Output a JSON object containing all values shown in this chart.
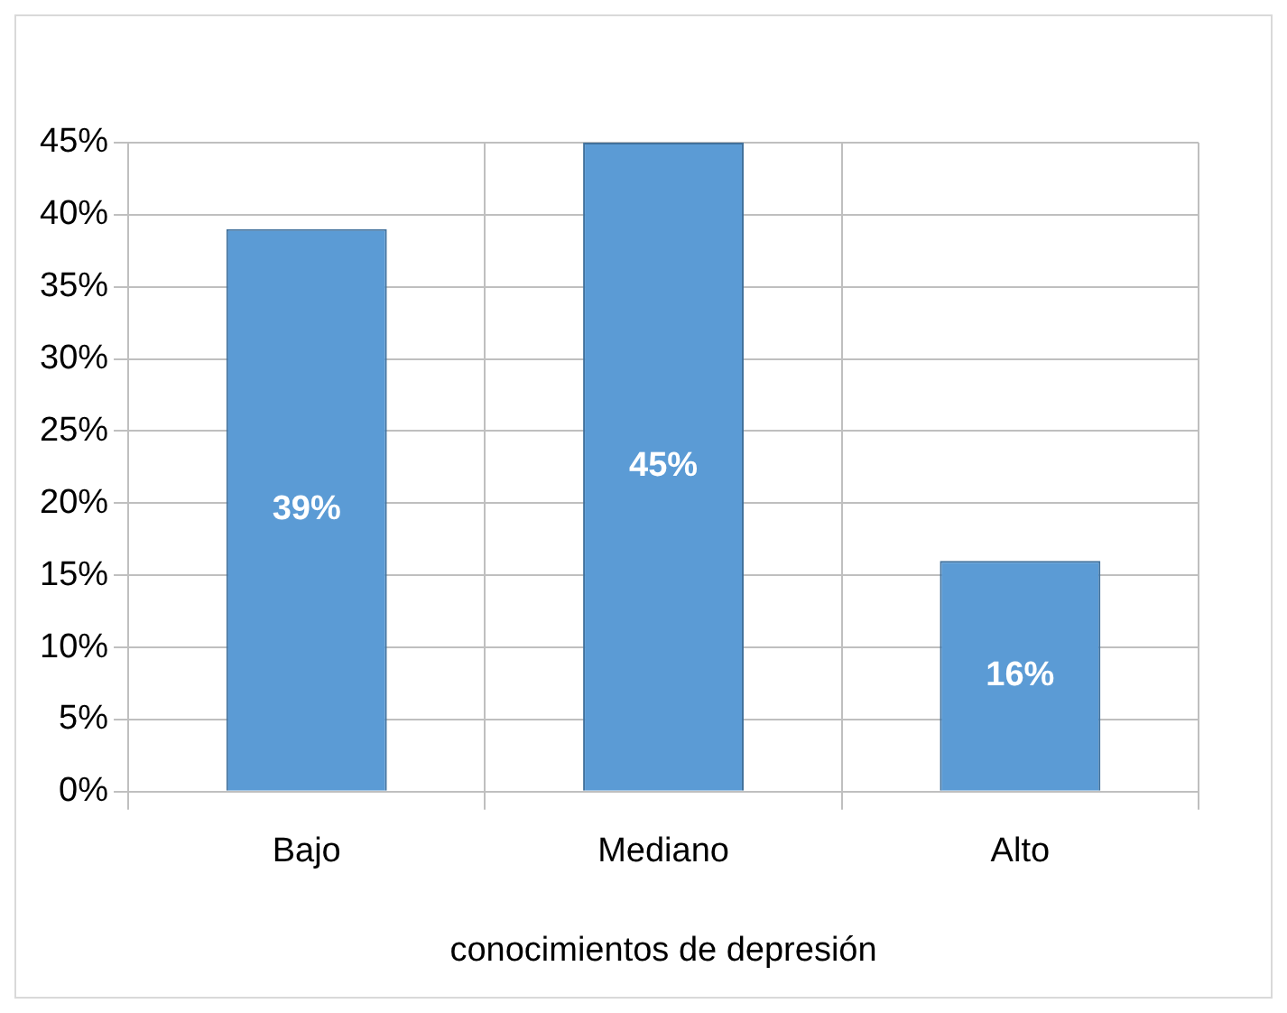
{
  "chart_data": {
    "type": "bar",
    "xlabel": "conocimientos de depresión",
    "categories": [
      "Bajo",
      "Mediano",
      "Alto"
    ],
    "values": [
      39,
      45,
      16
    ],
    "value_labels": [
      "39%",
      "45%",
      "16%"
    ],
    "color": "#5b9bd5",
    "ylim": [
      0,
      45
    ],
    "yticks": [
      {
        "value": 0,
        "label": "0%"
      },
      {
        "value": 5,
        "label": "5%"
      },
      {
        "value": 10,
        "label": "10%"
      },
      {
        "value": 15,
        "label": "15%"
      },
      {
        "value": 20,
        "label": "20%"
      },
      {
        "value": 25,
        "label": "25%"
      },
      {
        "value": 30,
        "label": "30%"
      },
      {
        "value": 35,
        "label": "35%"
      },
      {
        "value": 40,
        "label": "40%"
      },
      {
        "value": 45,
        "label": "45%"
      }
    ],
    "grid": "y",
    "legend": false
  }
}
